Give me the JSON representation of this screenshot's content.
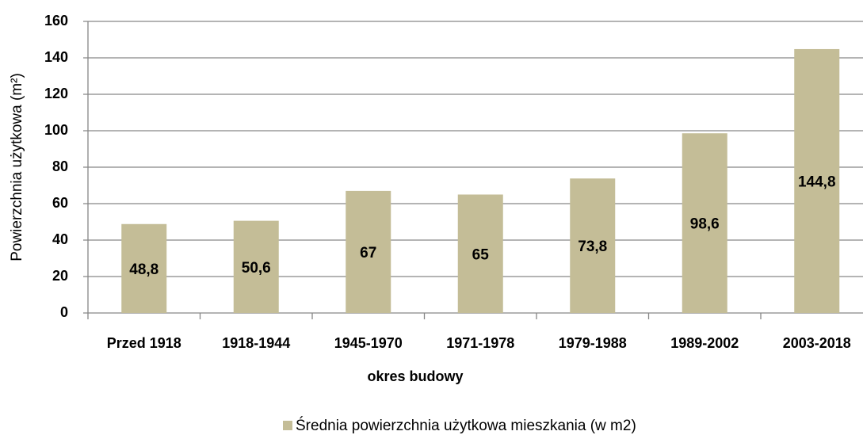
{
  "chart_data": {
    "type": "bar",
    "categories": [
      "Przed 1918",
      "1918-1944",
      "1945-1970",
      "1971-1978",
      "1979-1988",
      "1989-2002",
      "2003-2018"
    ],
    "series": [
      {
        "name": "Średnia powierzchnia użytkowa mieszkania (w m2)",
        "color": "#c4bd97",
        "values": [
          48.8,
          50.6,
          67,
          65,
          73.8,
          98.6,
          144.8
        ],
        "value_labels": [
          "48,8",
          "50,6",
          "67",
          "65",
          "73,8",
          "98,6",
          "144,8"
        ]
      }
    ],
    "xlabel": "okres budowy",
    "ylabel": "Powierzchnia użytkowa (m²)",
    "ylim": [
      0,
      160
    ],
    "yticks": [
      0,
      20,
      40,
      60,
      80,
      100,
      120,
      140,
      160
    ],
    "grid": true,
    "legend": "bottom"
  }
}
